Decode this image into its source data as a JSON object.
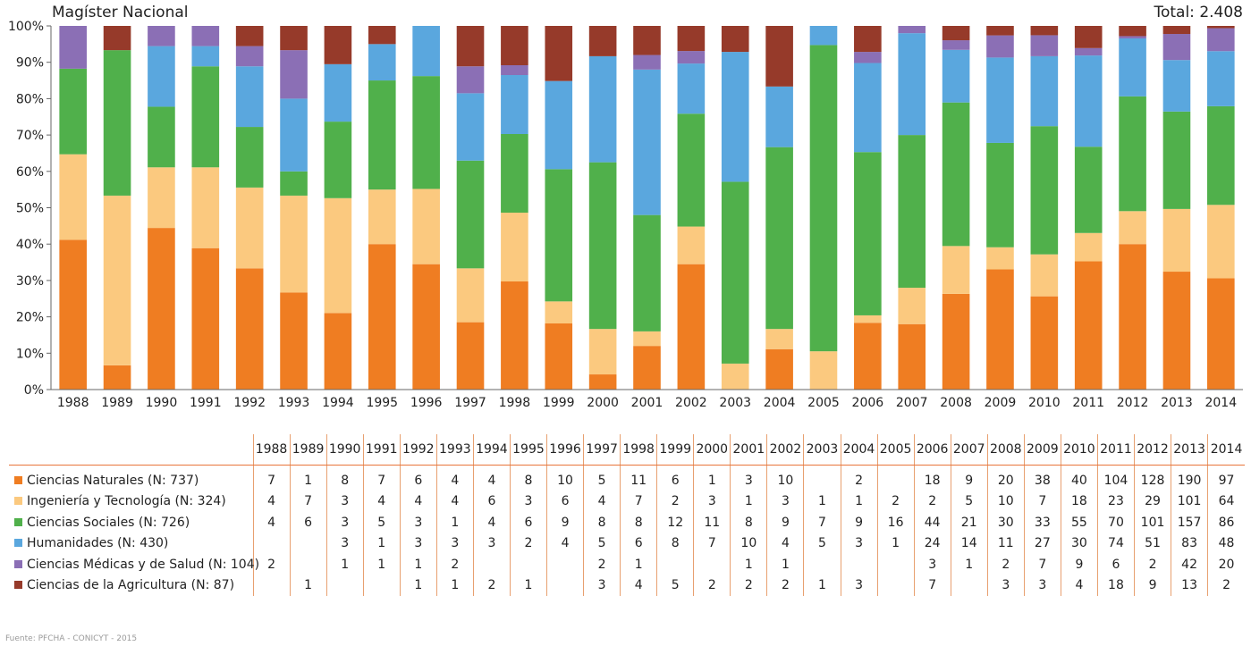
{
  "chart_data": {
    "type": "bar",
    "stacked": "percent",
    "title": "Magíster Nacional",
    "total_label": "Total: 2.408",
    "ylim": [
      0,
      100
    ],
    "y_ticks": [
      "0%",
      "10%",
      "20%",
      "30%",
      "40%",
      "50%",
      "60%",
      "70%",
      "80%",
      "90%",
      "100%"
    ],
    "grid": false,
    "legend": "table-below",
    "categories": [
      "1988",
      "1989",
      "1990",
      "1991",
      "1992",
      "1993",
      "1994",
      "1995",
      "1996",
      "1997",
      "1998",
      "1999",
      "2000",
      "2001",
      "2002",
      "2003",
      "2004",
      "2005",
      "2006",
      "2007",
      "2008",
      "2009",
      "2010",
      "2011",
      "2012",
      "2013",
      "2014"
    ],
    "series": [
      {
        "name": "Ciencias Naturales (N: 737)",
        "color": "#ef7d22",
        "values": [
          7,
          1,
          8,
          7,
          6,
          4,
          4,
          8,
          10,
          5,
          11,
          6,
          1,
          3,
          10,
          null,
          2,
          null,
          18,
          9,
          20,
          38,
          40,
          104,
          128,
          190,
          97
        ]
      },
      {
        "name": "Ingeniería y Tecnología (N: 324)",
        "color": "#fbc97f",
        "values": [
          4,
          7,
          3,
          4,
          4,
          4,
          6,
          3,
          6,
          4,
          7,
          2,
          3,
          1,
          3,
          1,
          1,
          2,
          2,
          5,
          10,
          7,
          18,
          23,
          29,
          101,
          64
        ]
      },
      {
        "name": "Ciencias Sociales (N: 726)",
        "color": "#50b04b",
        "values": [
          4,
          6,
          3,
          5,
          3,
          1,
          4,
          6,
          9,
          8,
          8,
          12,
          11,
          8,
          9,
          7,
          9,
          16,
          44,
          21,
          30,
          33,
          55,
          70,
          101,
          157,
          86
        ]
      },
      {
        "name": "Humanidades (N: 430)",
        "color": "#5aa7de",
        "values": [
          null,
          null,
          3,
          1,
          3,
          3,
          3,
          2,
          4,
          5,
          6,
          8,
          7,
          10,
          4,
          5,
          3,
          1,
          24,
          14,
          11,
          27,
          30,
          74,
          51,
          83,
          48
        ]
      },
      {
        "name": "Ciencias Médicas y de Salud (N: 104)",
        "color": "#8b6fb5",
        "values": [
          2,
          null,
          1,
          1,
          1,
          2,
          null,
          null,
          null,
          2,
          1,
          null,
          null,
          1,
          1,
          null,
          null,
          null,
          3,
          1,
          2,
          7,
          9,
          6,
          2,
          42,
          20
        ]
      },
      {
        "name": "Ciencias de la Agricultura (N: 87)",
        "color": "#963a2a",
        "values": [
          null,
          1,
          null,
          null,
          1,
          1,
          2,
          1,
          null,
          3,
          4,
          5,
          2,
          2,
          2,
          1,
          3,
          null,
          7,
          null,
          3,
          3,
          4,
          18,
          9,
          13,
          2
        ]
      }
    ],
    "source": "Fuente: PFCHA - CONICYT - 2015"
  }
}
